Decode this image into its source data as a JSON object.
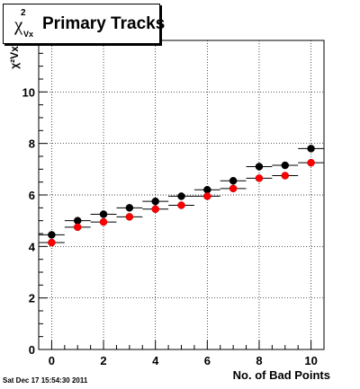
{
  "title": {
    "symbol": "χ",
    "superscript": "2",
    "subscript": "Vx",
    "text": "Primary Tracks"
  },
  "timestamp": "Sat Dec 17 15:54:30 2011",
  "chart_data": {
    "type": "scatter",
    "xlabel": "No. of Bad Points",
    "ylabel": "χ²Vx",
    "xlim": [
      -0.5,
      10.5
    ],
    "ylim": [
      0,
      12
    ],
    "x_ticks": [
      0,
      2,
      4,
      6,
      8,
      10
    ],
    "y_ticks": [
      0,
      2,
      4,
      6,
      8,
      10
    ],
    "grid": true,
    "series": [
      {
        "color": "#000000",
        "x": [
          0,
          1,
          2,
          3,
          4,
          5,
          6,
          7,
          8,
          9,
          10
        ],
        "y": [
          4.45,
          5.0,
          5.25,
          5.5,
          5.75,
          5.95,
          6.2,
          6.55,
          7.1,
          7.15,
          7.8
        ]
      },
      {
        "color": "#ff0000",
        "x": [
          0,
          1,
          2,
          3,
          4,
          5,
          6,
          7,
          8,
          9,
          10
        ],
        "y": [
          4.15,
          4.75,
          4.95,
          5.15,
          5.45,
          5.6,
          5.95,
          6.25,
          6.65,
          6.75,
          7.25
        ]
      }
    ]
  }
}
